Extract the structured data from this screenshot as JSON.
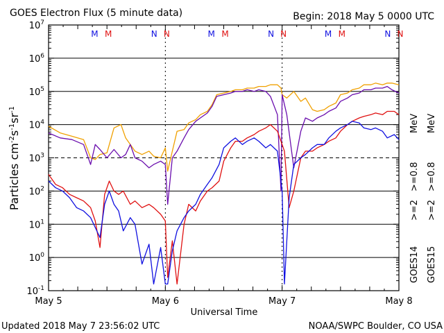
{
  "header": {
    "title": "GOES Electron Flux (5 minute data)",
    "begin": "Begin: 2018 May 5 0000 UTC"
  },
  "footer": {
    "updated": "Updated 2018 May  7 23:56:02 UTC",
    "credit": "NOAA/SWPC Boulder, CO USA"
  },
  "y_axis": {
    "label": "Particles cm",
    "label_sup1": "-2",
    "label_mid": "s",
    "label_sup2": "-1",
    "label_mid2": "sr",
    "label_sup3": "-1",
    "tick_base": "10",
    "tick_exponents": [
      "7",
      "6",
      "5",
      "4",
      "3",
      "2",
      "1",
      "0",
      "-1"
    ]
  },
  "x_axis": {
    "label": "Universal Time",
    "ticks": [
      "May 5",
      "May 6",
      "May 7",
      "May 8"
    ]
  },
  "markers": [
    "M",
    "M",
    "N",
    "N",
    "M",
    "M",
    "N",
    "N",
    "M",
    "M",
    "N",
    "N"
  ],
  "legend": {
    "goes14": "GOES14",
    "goes15": "GOES15",
    "e2_14": ">=2",
    "e08_14": ">=0.8",
    "e2_15": ">=2",
    "e08_15": ">=0.8",
    "mev": "MeV"
  },
  "colors": {
    "goes14_2mev": "#1010e0",
    "goes14_08mev": "#6a0dad",
    "goes15_2mev": "#e01010",
    "goes15_08mev": "#f0a000"
  },
  "chart_data": {
    "type": "line",
    "title": "GOES Electron Flux (5 minute data)",
    "xlabel": "Universal Time",
    "ylabel": "Particles cm-2 s-1 sr-1",
    "yscale": "log",
    "xlim_days": [
      0,
      3
    ],
    "ylim_exp": [
      -1,
      7
    ],
    "threshold_exp": 3,
    "x_tick_labels": [
      "May 5",
      "May 6",
      "May 7",
      "May 8"
    ],
    "series": [
      {
        "name": "GOES15 >=0.8 MeV",
        "color": "#f0a000",
        "x": [
          0.0,
          0.1,
          0.2,
          0.3,
          0.36,
          0.4,
          0.44,
          0.5,
          0.56,
          0.62,
          0.66,
          0.7,
          0.74,
          0.8,
          0.86,
          0.9,
          0.96,
          1.0,
          1.02,
          1.06,
          1.1,
          1.16,
          1.2,
          1.26,
          1.3,
          1.36,
          1.4,
          1.44,
          1.5,
          1.56,
          1.6,
          1.66,
          1.7,
          1.76,
          1.8,
          1.86,
          1.9,
          1.96,
          1.99,
          2.0,
          2.04,
          2.1,
          2.16,
          2.2,
          2.26,
          2.3,
          2.36,
          2.4,
          2.46,
          2.5,
          2.56,
          2.6,
          2.66,
          2.7,
          2.76,
          2.8,
          2.86,
          2.9,
          2.94,
          3.0
        ],
        "y": [
          3.95,
          3.75,
          3.65,
          3.55,
          3.0,
          2.95,
          3.1,
          3.15,
          3.9,
          4.0,
          3.6,
          3.4,
          3.2,
          3.1,
          3.2,
          3.05,
          3.0,
          3.3,
          2.6,
          3.2,
          3.8,
          3.85,
          4.05,
          4.15,
          4.3,
          4.4,
          4.6,
          4.9,
          4.95,
          5.0,
          5.05,
          5.05,
          5.1,
          5.1,
          5.15,
          5.15,
          5.2,
          5.2,
          5.1,
          4.9,
          4.8,
          5.0,
          4.7,
          4.8,
          4.45,
          4.4,
          4.45,
          4.55,
          4.65,
          4.9,
          4.95,
          5.05,
          5.1,
          5.2,
          5.2,
          5.25,
          5.2,
          5.25,
          5.25,
          5.2
        ]
      },
      {
        "name": "GOES14 >=0.8 MeV",
        "color": "#6a0dad",
        "x": [
          0.0,
          0.1,
          0.2,
          0.3,
          0.36,
          0.4,
          0.44,
          0.5,
          0.56,
          0.62,
          0.66,
          0.7,
          0.74,
          0.8,
          0.86,
          0.9,
          0.96,
          1.0,
          1.02,
          1.06,
          1.1,
          1.16,
          1.2,
          1.26,
          1.3,
          1.36,
          1.4,
          1.44,
          1.5,
          1.56,
          1.6,
          1.66,
          1.7,
          1.76,
          1.8,
          1.86,
          1.9,
          1.96,
          1.99,
          2.0,
          2.04,
          2.1,
          2.16,
          2.2,
          2.26,
          2.3,
          2.36,
          2.4,
          2.46,
          2.5,
          2.56,
          2.6,
          2.66,
          2.7,
          2.76,
          2.8,
          2.86,
          2.9,
          2.94,
          3.0
        ],
        "y": [
          3.75,
          3.6,
          3.55,
          3.4,
          2.8,
          3.4,
          3.25,
          3.0,
          3.25,
          3.0,
          3.1,
          3.4,
          3.0,
          2.9,
          2.7,
          2.8,
          2.9,
          2.8,
          1.6,
          3.0,
          3.2,
          3.6,
          3.85,
          4.1,
          4.2,
          4.35,
          4.55,
          4.85,
          4.9,
          4.95,
          5.0,
          5.0,
          5.05,
          5.0,
          5.05,
          5.0,
          4.85,
          4.3,
          2.0,
          4.9,
          4.3,
          2.7,
          3.8,
          4.2,
          4.1,
          4.2,
          4.3,
          4.4,
          4.5,
          4.7,
          4.8,
          4.9,
          4.95,
          5.05,
          5.05,
          5.1,
          5.1,
          5.15,
          5.05,
          4.95
        ]
      },
      {
        "name": "GOES15 >=2 MeV",
        "color": "#e01010",
        "x": [
          0.0,
          0.06,
          0.12,
          0.18,
          0.24,
          0.3,
          0.36,
          0.4,
          0.44,
          0.48,
          0.52,
          0.56,
          0.6,
          0.64,
          0.7,
          0.74,
          0.8,
          0.86,
          0.9,
          0.96,
          1.0,
          1.02,
          1.06,
          1.1,
          1.16,
          1.2,
          1.26,
          1.3,
          1.36,
          1.4,
          1.46,
          1.5,
          1.56,
          1.6,
          1.66,
          1.7,
          1.76,
          1.8,
          1.86,
          1.9,
          1.96,
          2.0,
          2.02,
          2.06,
          2.1,
          2.16,
          2.2,
          2.26,
          2.3,
          2.36,
          2.4,
          2.46,
          2.5,
          2.56,
          2.6,
          2.66,
          2.7,
          2.76,
          2.8,
          2.86,
          2.9,
          2.96,
          3.0
        ],
        "y": [
          2.5,
          2.2,
          2.1,
          1.9,
          1.8,
          1.7,
          1.5,
          1.1,
          0.3,
          1.9,
          2.3,
          2.0,
          1.9,
          2.0,
          1.6,
          1.7,
          1.5,
          1.6,
          1.5,
          1.3,
          1.1,
          -0.6,
          0.5,
          -0.8,
          1.0,
          1.6,
          1.4,
          1.7,
          2.0,
          2.1,
          2.3,
          2.9,
          3.3,
          3.5,
          3.5,
          3.6,
          3.7,
          3.8,
          3.9,
          4.0,
          3.8,
          3.4,
          3.2,
          1.5,
          2.0,
          3.0,
          3.2,
          3.2,
          3.3,
          3.4,
          3.5,
          3.6,
          3.8,
          4.0,
          4.1,
          4.2,
          4.25,
          4.3,
          4.35,
          4.3,
          4.4,
          4.4,
          4.3
        ]
      },
      {
        "name": "GOES14 >=2 MeV",
        "color": "#1010e0",
        "x": [
          0.0,
          0.06,
          0.12,
          0.18,
          0.24,
          0.3,
          0.36,
          0.4,
          0.44,
          0.48,
          0.52,
          0.56,
          0.6,
          0.64,
          0.7,
          0.74,
          0.8,
          0.86,
          0.9,
          0.96,
          1.0,
          1.02,
          1.06,
          1.1,
          1.16,
          1.2,
          1.26,
          1.3,
          1.36,
          1.4,
          1.46,
          1.5,
          1.56,
          1.6,
          1.66,
          1.7,
          1.76,
          1.8,
          1.86,
          1.9,
          1.96,
          2.0,
          2.02,
          2.06,
          2.1,
          2.16,
          2.2,
          2.26,
          2.3,
          2.36,
          2.4,
          2.46,
          2.5,
          2.56,
          2.6,
          2.66,
          2.7,
          2.76,
          2.8,
          2.86,
          2.9,
          2.96,
          3.0
        ],
        "y": [
          2.3,
          2.1,
          2.0,
          1.8,
          1.5,
          1.4,
          1.2,
          0.9,
          0.6,
          1.6,
          2.0,
          1.6,
          1.4,
          0.8,
          1.2,
          1.0,
          -0.2,
          0.4,
          -0.8,
          0.3,
          -0.8,
          -0.8,
          0.2,
          0.8,
          1.2,
          1.4,
          1.6,
          1.9,
          2.2,
          2.4,
          2.8,
          3.3,
          3.5,
          3.6,
          3.4,
          3.5,
          3.6,
          3.5,
          3.3,
          3.4,
          3.2,
          2.0,
          -0.8,
          1.8,
          2.8,
          3.0,
          3.1,
          3.3,
          3.4,
          3.4,
          3.6,
          3.8,
          3.9,
          4.0,
          4.1,
          4.05,
          3.9,
          3.85,
          3.9,
          3.8,
          3.6,
          3.7,
          3.55
        ]
      }
    ],
    "marker_times": [
      0.43,
      0.5,
      0.94,
      1.0,
      1.43,
      1.5,
      1.94,
      2.0,
      2.43,
      2.5,
      2.94,
      3.0
    ]
  }
}
